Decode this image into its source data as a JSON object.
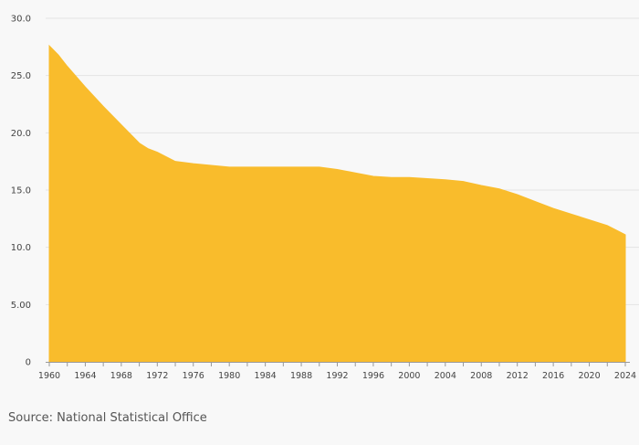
{
  "source": "Source: National Statistical Office",
  "colors": {
    "area_fill": "#f9bc2c",
    "grid": "#e3e3e3",
    "axis": "#999999",
    "background": "#f8f8f8"
  },
  "chart_data": {
    "type": "area",
    "title": "",
    "xlabel": "",
    "ylabel": "",
    "grid": true,
    "xlim": [
      1960,
      2024
    ],
    "ylim": [
      0,
      30
    ],
    "x_ticks": [
      "1960",
      "1964",
      "1968",
      "1972",
      "1976",
      "1980",
      "1984",
      "1988",
      "1992",
      "1996",
      "2000",
      "2004",
      "2008",
      "2012",
      "2016",
      "2020",
      "2024"
    ],
    "y_ticks": [
      "0",
      "5.00",
      "10.0",
      "15.0",
      "20.0",
      "25.0",
      "30.0"
    ],
    "series": [
      {
        "x": [
          1960,
          1961,
          1962,
          1964,
          1966,
          1968,
          1970,
          1971,
          1972,
          1974,
          1976,
          1978,
          1980,
          1984,
          1988,
          1990,
          1992,
          1994,
          1996,
          1998,
          2000,
          2002,
          2004,
          2006,
          2008,
          2010,
          2012,
          2014,
          2016,
          2018,
          2020,
          2022,
          2024
        ],
        "values": [
          27.6,
          26.8,
          25.8,
          24.0,
          22.3,
          20.7,
          19.1,
          18.6,
          18.3,
          17.5,
          17.3,
          17.15,
          17.0,
          17.0,
          17.0,
          17.0,
          16.8,
          16.5,
          16.2,
          16.1,
          16.1,
          16.0,
          15.9,
          15.75,
          15.4,
          15.1,
          14.6,
          14.0,
          13.4,
          12.9,
          12.4,
          11.9,
          11.1
        ]
      }
    ]
  }
}
